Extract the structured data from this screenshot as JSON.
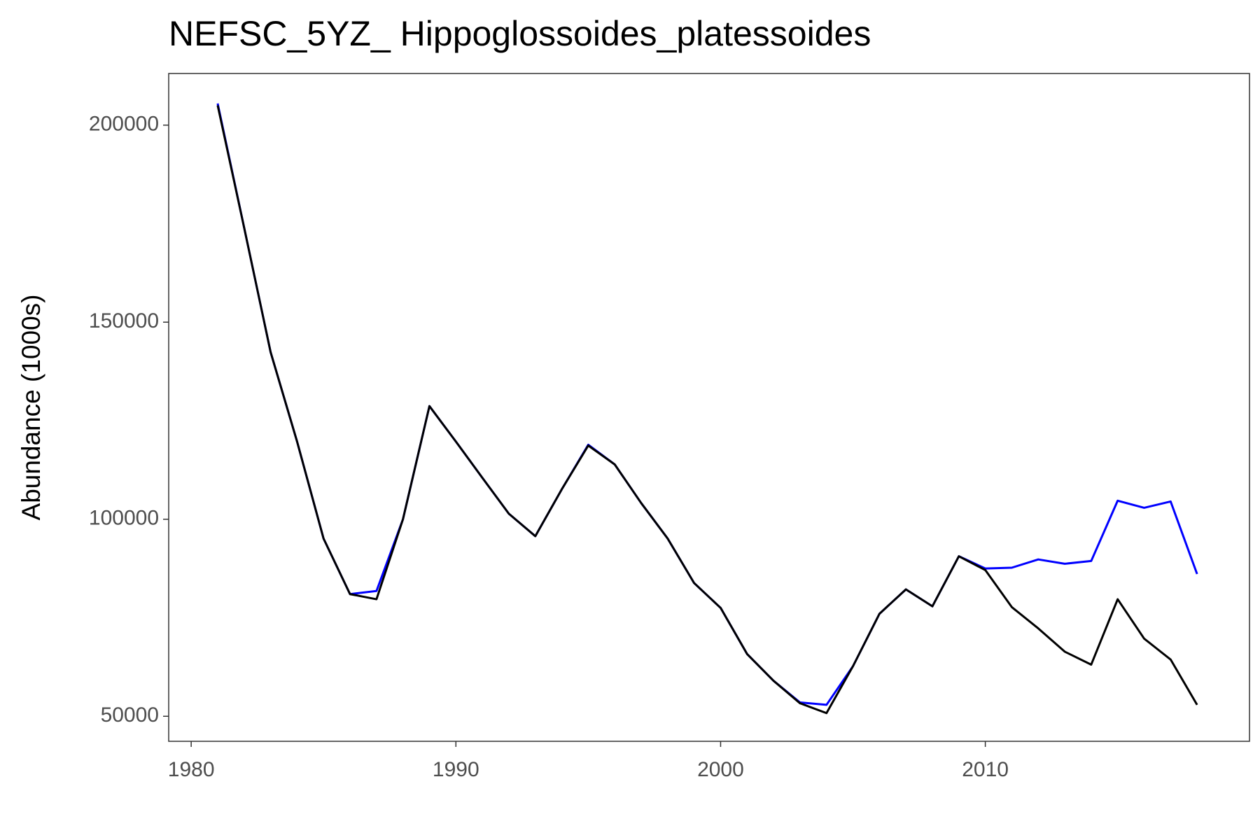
{
  "chart_data": {
    "type": "line",
    "title": "NEFSC_5YZ_ Hippoglossoides_platessoides",
    "y_label": "Abundance (1000s)",
    "x": [
      1981,
      1982,
      1983,
      1984,
      1985,
      1986,
      1987,
      1988,
      1989,
      1990,
      1991,
      1992,
      1993,
      1994,
      1995,
      1996,
      1997,
      1998,
      1999,
      2000,
      2001,
      2002,
      2003,
      2004,
      2005,
      2006,
      2007,
      2008,
      2009,
      2010,
      2011,
      2012,
      2013,
      2014,
      2015,
      2016,
      2017,
      2018
    ],
    "series": [
      {
        "color": "#0000ff",
        "values": [
          205500,
          174000,
          142400,
          119700,
          95100,
          81000,
          81800,
          100000,
          128700,
          119700,
          110500,
          101400,
          95700,
          107600,
          118900,
          113900,
          104100,
          95100,
          83800,
          77500,
          65800,
          59000,
          53500,
          52900,
          62700,
          76000,
          82200,
          77900,
          90600,
          87500,
          87700,
          89800,
          88700,
          89400,
          104700,
          102900,
          104500,
          86100
        ]
      },
      {
        "color": "#000000",
        "values": [
          205000,
          174000,
          142400,
          119700,
          95100,
          81000,
          79700,
          100000,
          128700,
          119700,
          110500,
          101400,
          95700,
          107600,
          118700,
          113900,
          104100,
          95100,
          83800,
          77500,
          65800,
          59000,
          53300,
          50800,
          62700,
          76000,
          82200,
          77900,
          90600,
          87100,
          77700,
          72300,
          66400,
          63100,
          79700,
          69700,
          64400,
          52900
        ]
      }
    ],
    "xlim": [
      1979.15,
      2019.98
    ],
    "xticks": [
      1980,
      1990,
      2000,
      2010
    ],
    "ylim": [
      43650,
      213100
    ],
    "yticks": [
      50000,
      100000,
      150000,
      200000
    ]
  }
}
